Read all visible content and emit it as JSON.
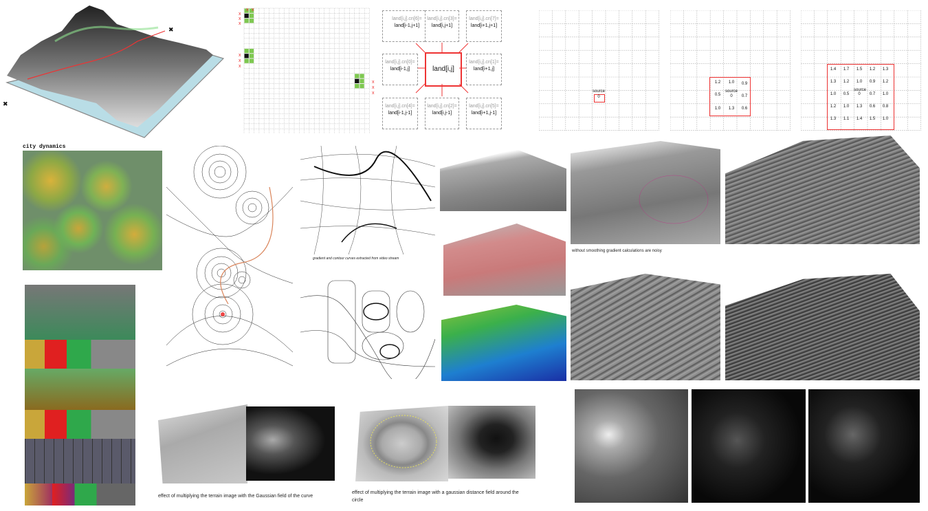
{
  "captions": {
    "city_dynamics": "city dynamics",
    "noisy": "without smoothing gradient calculations are noisy",
    "video_stream": "gradient and contour curves extracted from video stream",
    "gaussian_curve": "effect of multiplying the terrain image with the Gaussian field of the curve",
    "gaussian_circle_1": "effect of multiplying the terrain image with a gaussian distance field around the",
    "gaussian_circle_2": "circle"
  },
  "neighbor_diagram": {
    "center": "land[i,j]",
    "cells": [
      {
        "index": "land[i,j].cn[6]=",
        "label": "land[i-1,j+1]"
      },
      {
        "index": "land[i,j].cn[3]=",
        "label": "land[i,j+1]"
      },
      {
        "index": "land[i,j].cn[7]=",
        "label": "land[i+1,j+1]"
      },
      {
        "index": "land[i,j].cn[0]=",
        "label": "land[i-1,j]"
      },
      {
        "index": "land[i,j].cn[1]=",
        "label": "land[i+1,j]"
      },
      {
        "index": "land[i,j].cn[4]=",
        "label": "land[i-1,j-1]"
      },
      {
        "index": "land[i,j].cn[2]=",
        "label": "land[i,j-1]"
      },
      {
        "index": "land[i,j].cn[5]=",
        "label": "land[i+1,j-1]"
      }
    ]
  },
  "distance_grids": {
    "source_label": "source",
    "grid1": {
      "source_value": "0"
    },
    "grid2": {
      "values": [
        "1.2",
        "1.0",
        "0.9",
        "0.5",
        "0",
        "0.7",
        "1.0",
        "1.3",
        "0.6"
      ]
    },
    "grid3": {
      "rows": [
        [
          "1.4",
          "1.7",
          "1.5",
          "1.2",
          "1.3"
        ],
        [
          "1.3",
          "1.2",
          "1.0",
          "0.9",
          "1.2"
        ],
        [
          "1.0",
          "0.5",
          "0",
          "0.7",
          "1.0"
        ],
        [
          "1.2",
          "1.0",
          "1.3",
          "0.6",
          "0.8"
        ],
        [
          "1.3",
          "1.1",
          "1.4",
          "1.5",
          "1.0"
        ]
      ]
    }
  },
  "markers": {
    "x": "x"
  },
  "colors": {
    "accent_red": "#e33333",
    "green_cell": "#7ec850",
    "terrain_blue": "#b9dde6"
  }
}
